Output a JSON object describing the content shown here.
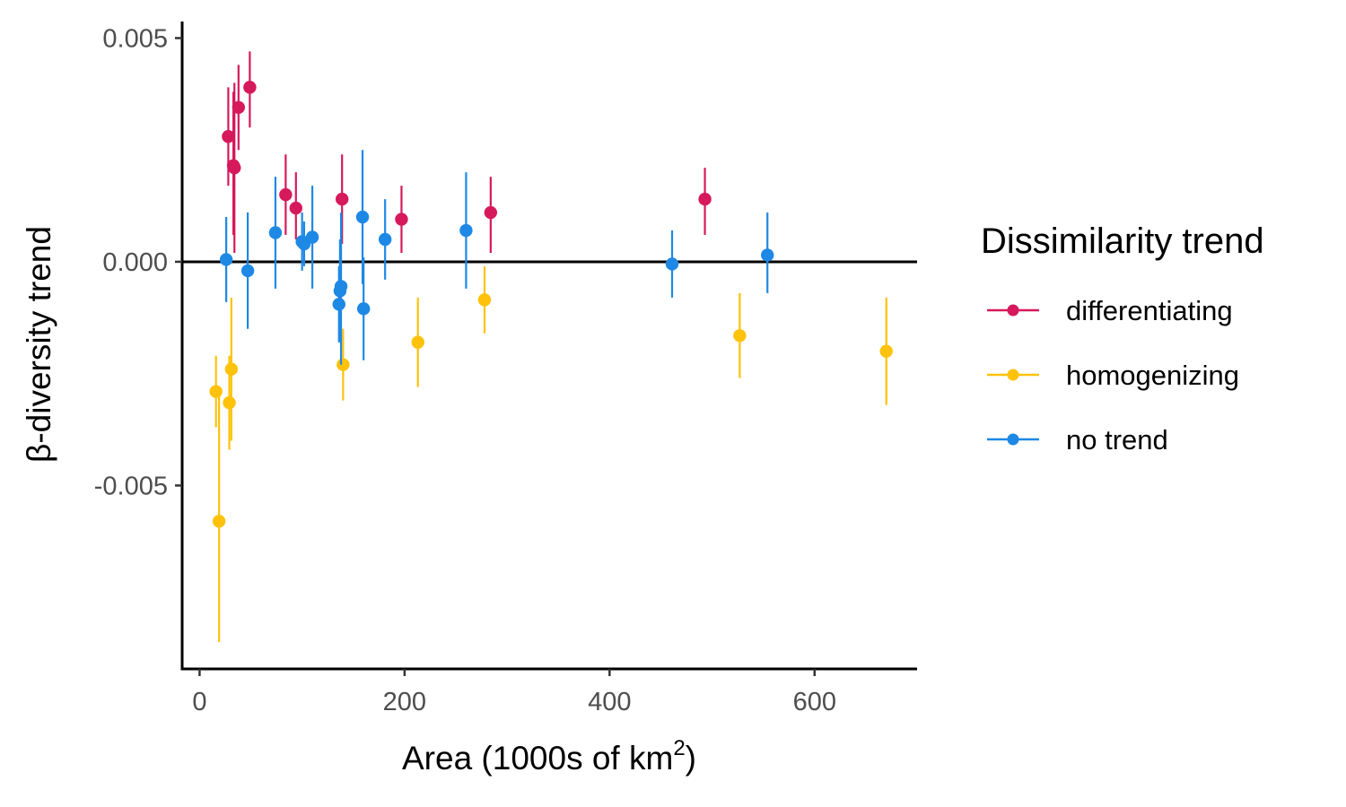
{
  "chart_data": {
    "type": "scatter",
    "xlabel": "Area (1000s of km",
    "xlabel_superscript": "2",
    "xlabel_suffix": ")",
    "ylabel": "β-diversity trend",
    "xlim": [
      -17,
      700
    ],
    "ylim": [
      -0.0091,
      0.00537
    ],
    "x_ticks": [
      0,
      200,
      400,
      600
    ],
    "y_ticks": [
      0.005,
      0.0,
      -0.005
    ],
    "y_tick_labels": [
      "0.005",
      "0.000",
      "-0.005"
    ],
    "reference_line_y": 0,
    "grid": false,
    "legend": {
      "title": "Dissimilarity trend",
      "placement": "right",
      "entries": [
        {
          "label": "differentiating",
          "color": "#D6195B"
        },
        {
          "label": "homogenizing",
          "color": "#FFC20A"
        },
        {
          "label": "no trend",
          "color": "#1E88E5"
        }
      ]
    },
    "series": [
      {
        "name": "differentiating",
        "color": "#D6195B",
        "points": [
          {
            "x": 28,
            "y": 0.0028,
            "lo": 0.0017,
            "hi": 0.0039
          },
          {
            "x": 33,
            "y": 0.00215,
            "lo": 0.0006,
            "hi": 0.0038
          },
          {
            "x": 34,
            "y": 0.0021,
            "lo": 0.0002,
            "hi": 0.004
          },
          {
            "x": 38,
            "y": 0.00345,
            "lo": 0.0025,
            "hi": 0.0044
          },
          {
            "x": 49,
            "y": 0.0039,
            "lo": 0.003,
            "hi": 0.0047
          },
          {
            "x": 84,
            "y": 0.0015,
            "lo": 0.0006,
            "hi": 0.0024
          },
          {
            "x": 94,
            "y": 0.0012,
            "lo": 0.0005,
            "hi": 0.002
          },
          {
            "x": 139,
            "y": 0.0014,
            "lo": 0.0004,
            "hi": 0.0024
          },
          {
            "x": 197,
            "y": 0.00095,
            "lo": 0.0002,
            "hi": 0.0017
          },
          {
            "x": 284,
            "y": 0.0011,
            "lo": 0.0002,
            "hi": 0.0019
          },
          {
            "x": 493,
            "y": 0.0014,
            "lo": 0.0006,
            "hi": 0.0021
          }
        ]
      },
      {
        "name": "homogenizing",
        "color": "#FFC20A",
        "points": [
          {
            "x": 16,
            "y": -0.0029,
            "lo": -0.0037,
            "hi": -0.0021
          },
          {
            "x": 19,
            "y": -0.0058,
            "lo": -0.0085,
            "hi": -0.003
          },
          {
            "x": 29,
            "y": -0.00315,
            "lo": -0.0042,
            "hi": -0.0021
          },
          {
            "x": 31,
            "y": -0.0024,
            "lo": -0.004,
            "hi": -0.0008
          },
          {
            "x": 140,
            "y": -0.0023,
            "lo": -0.0031,
            "hi": -0.0015
          },
          {
            "x": 213,
            "y": -0.0018,
            "lo": -0.0028,
            "hi": -0.0008
          },
          {
            "x": 278,
            "y": -0.00085,
            "lo": -0.0016,
            "hi": -0.0001
          },
          {
            "x": 527,
            "y": -0.00165,
            "lo": -0.0026,
            "hi": -0.0007
          },
          {
            "x": 670,
            "y": -0.002,
            "lo": -0.0032,
            "hi": -0.0008
          }
        ]
      },
      {
        "name": "no trend",
        "color": "#1E88E5",
        "points": [
          {
            "x": 26,
            "y": 5e-05,
            "lo": -0.0009,
            "hi": 0.001
          },
          {
            "x": 47,
            "y": -0.0002,
            "lo": -0.0015,
            "hi": 0.0011
          },
          {
            "x": 74,
            "y": 0.00065,
            "lo": -0.0006,
            "hi": 0.0019
          },
          {
            "x": 100,
            "y": 0.00045,
            "lo": -0.0002,
            "hi": 0.0011
          },
          {
            "x": 102,
            "y": 0.0004,
            "lo": -0.0001,
            "hi": 0.0009
          },
          {
            "x": 110,
            "y": 0.00055,
            "lo": -0.0006,
            "hi": 0.0017
          },
          {
            "x": 136,
            "y": -0.00095,
            "lo": -0.0018,
            "hi": -0.0001
          },
          {
            "x": 137,
            "y": -0.00065,
            "lo": -0.0018,
            "hi": 0.0005
          },
          {
            "x": 138,
            "y": -0.00055,
            "lo": -0.0023,
            "hi": 0.0011
          },
          {
            "x": 159,
            "y": 0.001,
            "lo": -0.0005,
            "hi": 0.0025
          },
          {
            "x": 160,
            "y": -0.00105,
            "lo": -0.0022,
            "hi": 0.0001
          },
          {
            "x": 181,
            "y": 0.0005,
            "lo": -0.0004,
            "hi": 0.0014
          },
          {
            "x": 260,
            "y": 0.0007,
            "lo": -0.0006,
            "hi": 0.002
          },
          {
            "x": 461,
            "y": -5e-05,
            "lo": -0.0008,
            "hi": 0.0007
          },
          {
            "x": 554,
            "y": 0.00015,
            "lo": -0.0007,
            "hi": 0.0011
          }
        ]
      }
    ]
  }
}
